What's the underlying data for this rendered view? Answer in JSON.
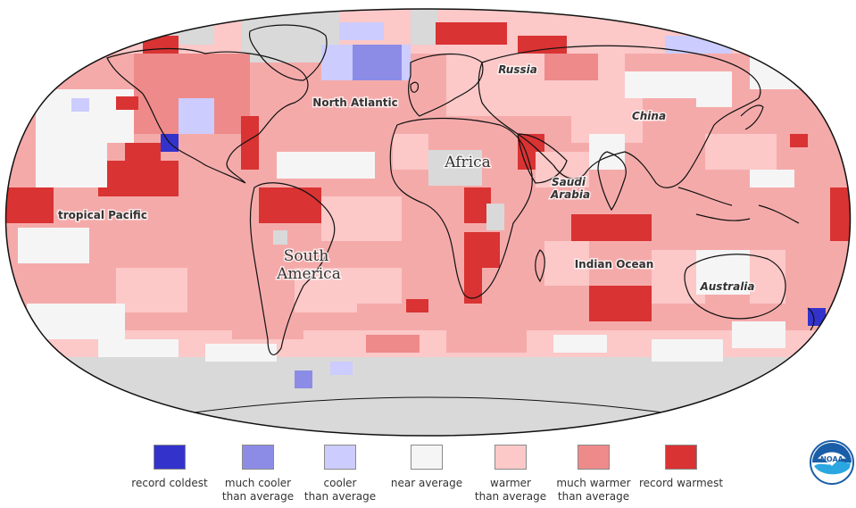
{
  "map": {
    "projection": "robinson",
    "labels": {
      "north_atlantic": "North Atlantic",
      "russia": "Russia",
      "china": "China",
      "africa": "Africa",
      "saudi_arabia_1": "Saudi",
      "saudi_arabia_2": "Arabia",
      "tropical_pacific": "tropical Pacific",
      "south_america_1": "South",
      "south_america_2": "America",
      "indian_ocean": "Indian Ocean",
      "australia": "Australia"
    },
    "colors": {
      "record_coldest": "#3333cc",
      "much_cooler": "#8c8ce6",
      "cooler": "#ccccff",
      "near_average": "#f5f5f5",
      "warmer": "#fcc8c8",
      "much_warmer": "#ee8a8a",
      "record_warmest": "#d93333",
      "no_data": "#d9d9d9",
      "mid_warm": "#f5aaaa"
    }
  },
  "legend": [
    {
      "label": "record coldest",
      "color": "#3333cc"
    },
    {
      "label": "much cooler\nthan average",
      "color": "#8c8ce6"
    },
    {
      "label": "cooler\nthan average",
      "color": "#ccccff"
    },
    {
      "label": "near average",
      "color": "#f5f5f5"
    },
    {
      "label": "warmer\nthan average",
      "color": "#fcc8c8"
    },
    {
      "label": "much warmer\nthan average",
      "color": "#ee8a8a"
    },
    {
      "label": "record warmest",
      "color": "#d93333"
    }
  ],
  "logo": {
    "name": "NOAA",
    "text": "NOAA"
  }
}
